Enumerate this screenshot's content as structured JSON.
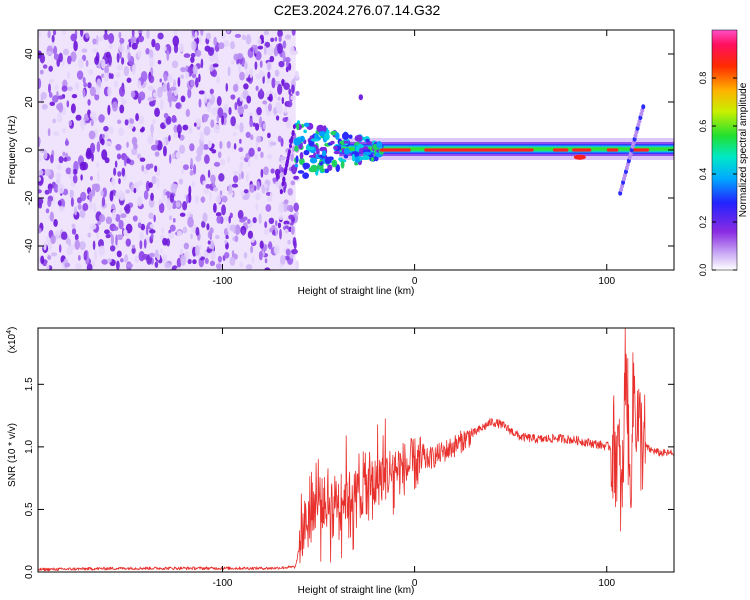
{
  "title": "C2E3.2024.276.07.14.G32",
  "chart_data": [
    {
      "type": "heatmap",
      "xlabel": "Height of straight line (km)",
      "ylabel": "Frequency (Hz)",
      "xlim": [
        -196,
        135
      ],
      "ylim": [
        -50,
        50
      ],
      "xticks": [
        -100,
        0,
        100
      ],
      "yticks": [
        -40,
        -20,
        0,
        20,
        40
      ],
      "colorbar": {
        "label": "Normalized spectral amplitude",
        "range": [
          0.0,
          1.0
        ],
        "ticks": [
          "0.0",
          "0.2",
          "0.4",
          "0.6",
          "0.8"
        ]
      },
      "features": [
        {
          "name": "diffuse noise",
          "x": [
            -196,
            -65
          ],
          "y": [
            -50,
            50
          ],
          "amplitude": 0.25
        },
        {
          "name": "main signal band",
          "x": [
            -60,
            135
          ],
          "y_center": 0,
          "amplitude": 0.9
        },
        {
          "name": "peak",
          "x": 110,
          "y": [
            -18,
            18
          ],
          "amplitude": 0.4
        }
      ]
    },
    {
      "type": "line",
      "xlabel": "Height of straight line (km)",
      "ylabel": "SNR (10 * v/v)",
      "scale_label": "(x10",
      "scale_exponent": "4",
      "xlim": [
        -196,
        135
      ],
      "ylim": [
        0,
        1.95
      ],
      "xticks": [
        -100,
        0,
        100
      ],
      "yticks": [
        "0.0",
        "0.5",
        "1.0",
        "1.5"
      ],
      "series": [
        {
          "color": "#e8302c",
          "x": [
            -196,
            -150,
            -100,
            -75,
            -62,
            -58,
            -52,
            -45,
            -38,
            -30,
            -22,
            -15,
            -10,
            -5,
            0,
            10,
            20,
            30,
            40,
            45,
            55,
            65,
            75,
            85,
            95,
            102,
            106,
            108,
            110,
            112,
            114,
            116,
            118,
            122,
            128,
            135
          ],
          "y": [
            0.02,
            0.03,
            0.03,
            0.03,
            0.04,
            0.35,
            0.55,
            0.55,
            0.6,
            0.62,
            0.7,
            0.78,
            0.82,
            0.83,
            0.86,
            0.92,
            1.0,
            1.1,
            1.2,
            1.18,
            1.08,
            1.06,
            1.07,
            1.05,
            1.02,
            1.0,
            0.95,
            0.5,
            1.85,
            0.6,
            1.5,
            1.2,
            1.05,
            0.98,
            0.95,
            0.95
          ]
        }
      ]
    }
  ]
}
